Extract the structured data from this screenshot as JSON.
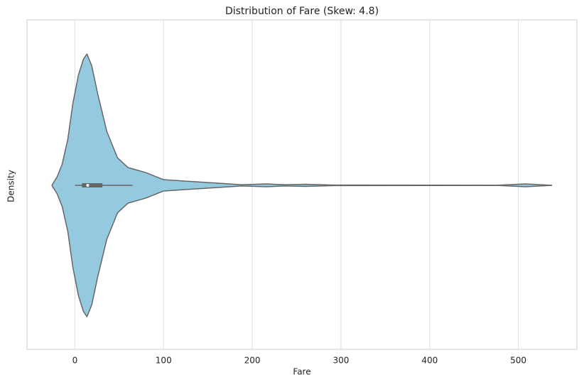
{
  "chart_data": {
    "type": "violin",
    "title": "Distribution of Fare (Skew: 4.8)",
    "x_label": "Fare",
    "y_label": "Density",
    "x": [
      -26,
      -20,
      -14.4,
      -8,
      -2.4,
      4,
      9.6,
      13.6,
      19,
      25.6,
      36,
      48,
      60,
      80,
      100,
      148,
      188,
      216,
      236,
      260,
      292,
      476,
      508,
      538
    ],
    "values": [
      0,
      0.065,
      0.16,
      0.35,
      0.62,
      0.84,
      0.96,
      1,
      0.91,
      0.7,
      0.41,
      0.21,
      0.135,
      0.097,
      0.043,
      0.022,
      0.005,
      0.011,
      0.005,
      0.008,
      0.002,
      0.001,
      0.011,
      0
    ],
    "box": {
      "whisker_low": 0,
      "q1": 7.9,
      "median": 14.45,
      "q3": 31,
      "whisker_high": 65
    },
    "color": "#94c9e0",
    "edge_color": "#666666",
    "xlim": [
      -54,
      566
    ],
    "xticks": [
      0,
      100,
      200,
      300,
      400,
      500
    ],
    "grid": true
  }
}
